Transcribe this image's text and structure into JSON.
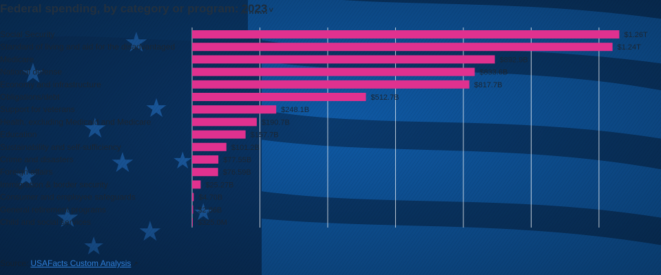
{
  "header": {
    "title": "Federal spending, by category or program:",
    "year": "2023",
    "year_caret": "˅"
  },
  "source": {
    "label": "Source:",
    "link_text": "USAFacts Custom Analysis",
    "link_icon": "external-link-icon"
  },
  "colors": {
    "bar": "#e0318f",
    "grid": "#ffffff",
    "label_text": "#1a2532",
    "background": "#0b3d73"
  },
  "chart_data": {
    "type": "bar",
    "orientation": "horizontal",
    "title": "Federal spending, by category or program: 2023",
    "xlim": [
      0,
      1320
    ],
    "units": "billions of dollars",
    "grid": true,
    "categories": [
      "Social Security",
      "Standard of living and aid for the disadvantaged",
      "Medicare",
      "National defense",
      "Economy and infrastructure",
      "Obligations/debt",
      "Support for veterans",
      "Health, excluding Medicaid and Medicare",
      "Education",
      "Sustainability and self-sufficiency",
      "Crime and disasters",
      "Foreign affairs",
      "Immigration & border security",
      "Consumer and employee safeguards",
      "General retirement programs",
      "Child and social services"
    ],
    "values": [
      1260,
      1240,
      892.9,
      833.6,
      817.7,
      512.7,
      248.1,
      190.7,
      157.7,
      101.2,
      77.55,
      76.59,
      25.27,
      4.7,
      2.86,
      0.325
    ],
    "labels": [
      "$1.26T",
      "$1.24T",
      "$892.9B",
      "$833.6B",
      "$817.7B",
      "$512.7B",
      "$248.1B",
      "$190.7B",
      "$157.7B",
      "$101.2B",
      "$77.55B",
      "$76.59B",
      "$25.27B",
      "$4.70B",
      "$2.86B",
      "$325.0M"
    ]
  }
}
